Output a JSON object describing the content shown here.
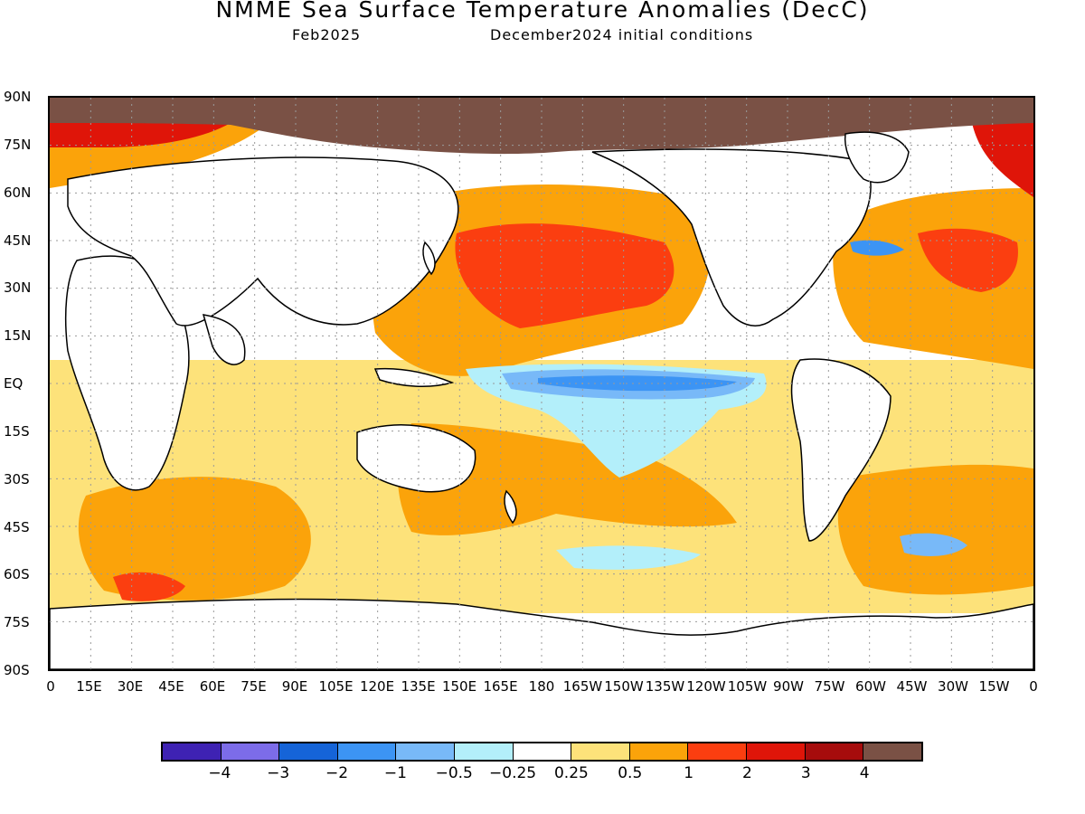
{
  "header": {
    "title": "NMME Sea Surface Temperature Anomalies (DecC)",
    "valid_month": "Feb2025",
    "init": "December2024 initial conditions"
  },
  "map": {
    "lat_labels": [
      "90N",
      "75N",
      "60N",
      "45N",
      "30N",
      "15N",
      "EQ",
      "15S",
      "30S",
      "45S",
      "60S",
      "75S",
      "90S"
    ],
    "lon_labels": [
      "0",
      "15E",
      "30E",
      "45E",
      "60E",
      "75E",
      "90E",
      "105E",
      "120E",
      "135E",
      "150E",
      "165E",
      "180",
      "165W",
      "150W",
      "135W",
      "120W",
      "105W",
      "90W",
      "75W",
      "60W",
      "45W",
      "30W",
      "15W",
      "0"
    ],
    "colors": {
      "ice": "#7a5145",
      "anom_0_25": "#fde27a",
      "anom_0_5": "#fba30a",
      "anom_1": "#fb3e10",
      "anom_2": "#df1509",
      "anom_3": "#a60c0c",
      "neg_0_25": "#b3effa",
      "neg_0_5": "#78b9f8",
      "neg_1": "#3c94f4",
      "neg_2": "#1564d8",
      "land_line": "#000000"
    }
  },
  "colorbar": {
    "colors": [
      "#3e22b3",
      "#7c6ce9",
      "#1564d8",
      "#3c94f4",
      "#78b9f8",
      "#b3effa",
      "#ffffff",
      "#fde27a",
      "#fba30a",
      "#fb3e10",
      "#df1509",
      "#a60c0c",
      "#7a5145"
    ],
    "labels": [
      "−4",
      "−3",
      "−2",
      "−1",
      "−0.5",
      "−0.25",
      "0.25",
      "0.5",
      "1",
      "2",
      "3",
      "4"
    ]
  }
}
